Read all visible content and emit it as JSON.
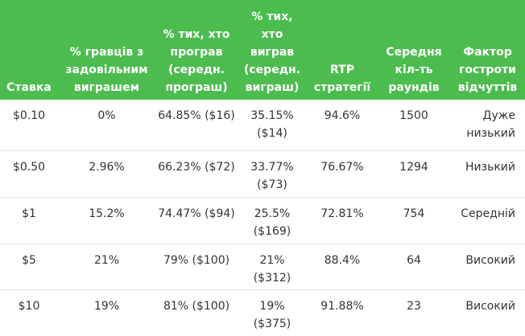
{
  "table": {
    "headers": [
      "Ставка",
      "% гравців з задовільним виграшем",
      "% тих, хто програв (середн. програш)",
      "% тих, хто виграв (середн. виграш)",
      "RTP стратегії",
      "Середня кіл-ть раундів",
      "Фактор гостроти відчуттів"
    ],
    "rows": [
      [
        "$0.10",
        "0%",
        "64.85% ($16)",
        "35.15% ($14)",
        "94.6%",
        "1500",
        "Дуже низький"
      ],
      [
        "$0.50",
        "2.96%",
        "66.23% ($72)",
        "33.77% ($73)",
        "76.67%",
        "1294",
        "Низький"
      ],
      [
        "$1",
        "15.2%",
        "74.47% ($94)",
        "25.5% ($169)",
        "72.81%",
        "754",
        "Середній"
      ],
      [
        "$5",
        "21%",
        "79% ($100)",
        "21% ($312)",
        "88.4%",
        "64",
        "Високий"
      ],
      [
        "$10",
        "19%",
        "81% ($100)",
        "19% ($375)",
        "91.88%",
        "23",
        "Високий"
      ]
    ]
  }
}
